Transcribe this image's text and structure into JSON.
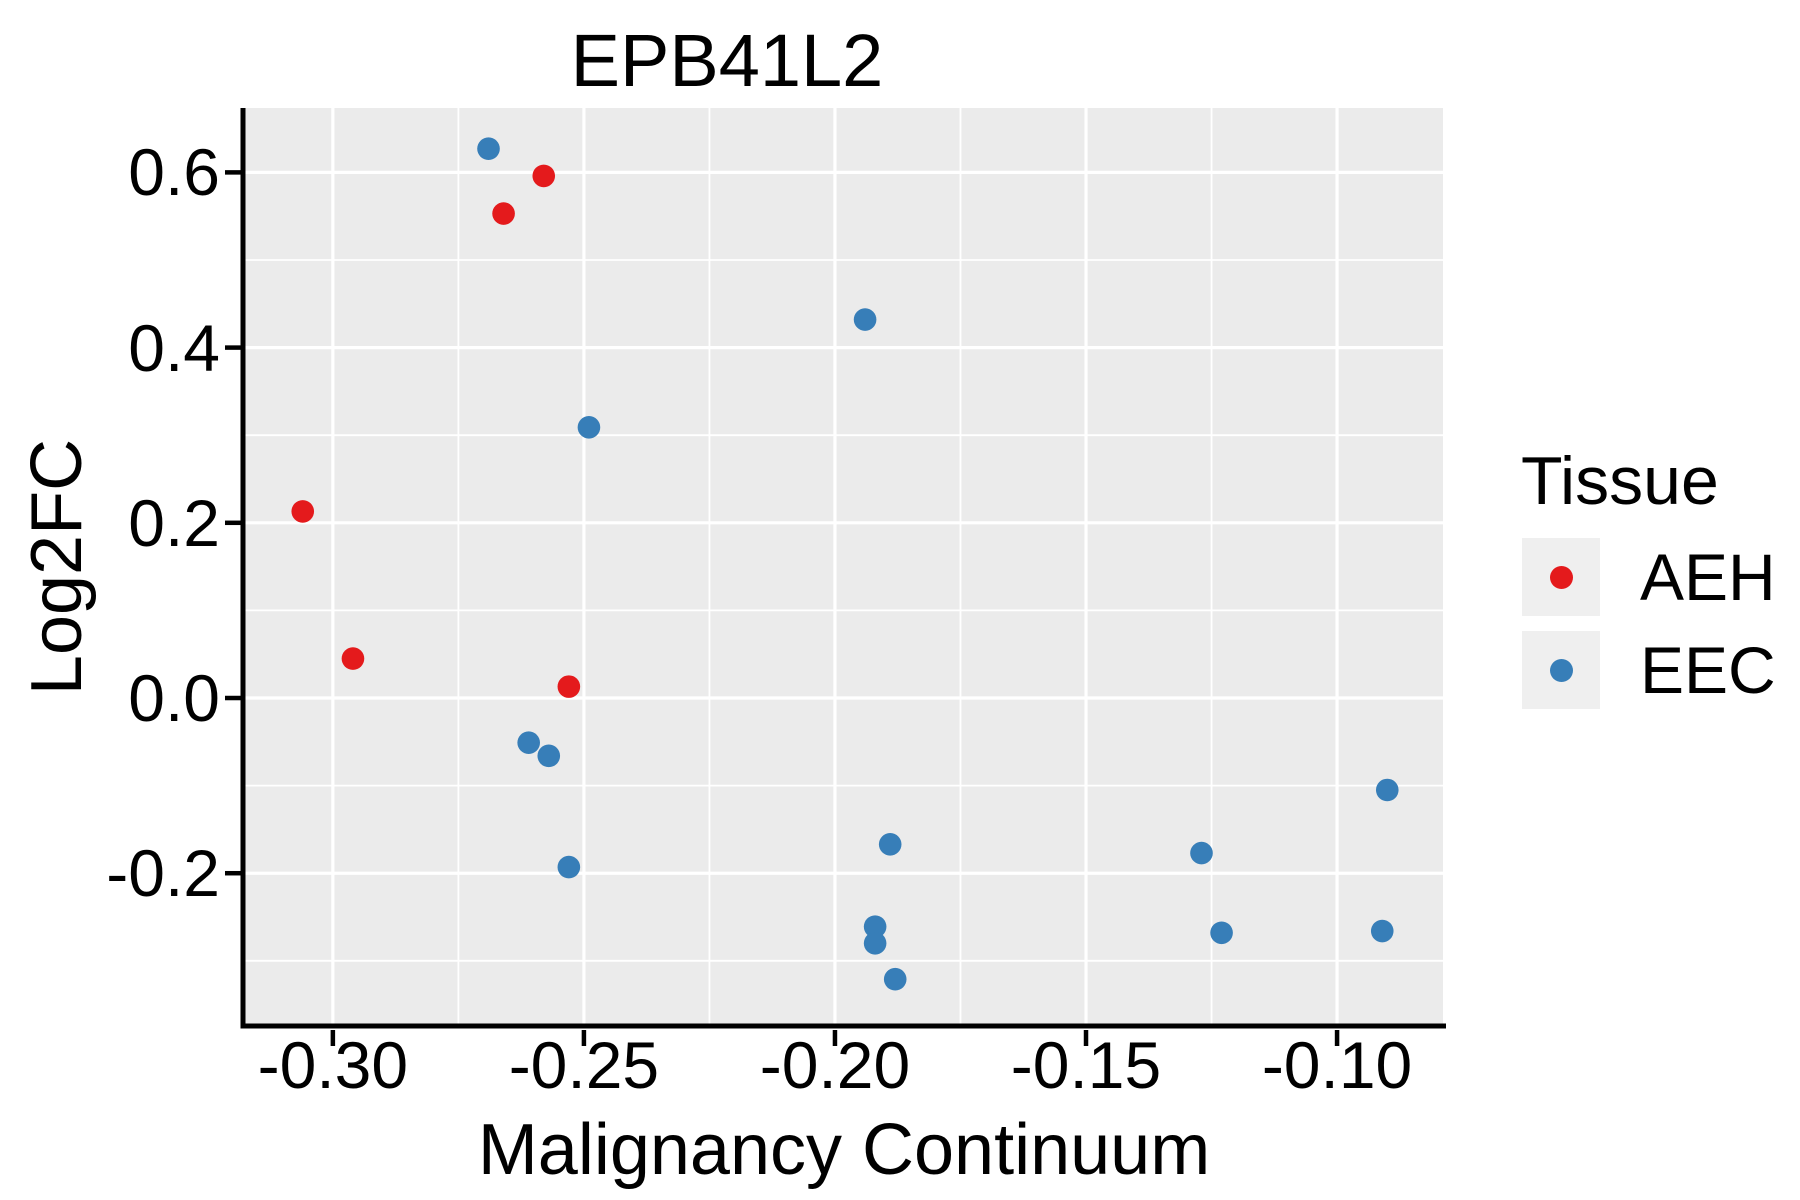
{
  "title": "EPB41L2",
  "chart_data": {
    "type": "scatter",
    "title": "EPB41L2",
    "xlabel": "Malignancy Continuum",
    "ylabel": "Log2FC",
    "xlim": [
      -0.3175,
      -0.0789
    ],
    "ylim": [
      -0.3744,
      0.6735
    ],
    "grid": true,
    "legend_position": "right",
    "x_ticks": {
      "values": [
        -0.3,
        -0.25,
        -0.2,
        -0.15,
        -0.1
      ],
      "labels": [
        "-0.30",
        "-0.25",
        "-0.20",
        "-0.15",
        "-0.10"
      ]
    },
    "y_ticks": {
      "values": [
        0.6,
        0.4,
        0.2,
        0.0,
        -0.2
      ],
      "labels": [
        "0.6",
        "0.4",
        "0.2",
        "0.0",
        "-0.2"
      ]
    },
    "x_minor": [
      -0.275,
      -0.225,
      -0.175,
      -0.125
    ],
    "y_minor": [
      0.5,
      0.3,
      0.1,
      -0.1,
      -0.3
    ],
    "series": [
      {
        "name": "AEH",
        "color": "#E41A1C",
        "points": [
          [
            -0.258,
            0.596
          ],
          [
            -0.266,
            0.553
          ],
          [
            -0.306,
            0.213
          ],
          [
            -0.296,
            0.045
          ],
          [
            -0.253,
            0.013
          ]
        ]
      },
      {
        "name": "EEC",
        "color": "#377EB8",
        "points": [
          [
            -0.269,
            0.627
          ],
          [
            -0.194,
            0.432
          ],
          [
            -0.249,
            0.309
          ],
          [
            -0.261,
            -0.051
          ],
          [
            -0.257,
            -0.066
          ],
          [
            -0.253,
            -0.193
          ],
          [
            -0.189,
            -0.167
          ],
          [
            -0.192,
            -0.261
          ],
          [
            -0.192,
            -0.28
          ],
          [
            -0.188,
            -0.321
          ],
          [
            -0.127,
            -0.177
          ],
          [
            -0.123,
            -0.268
          ],
          [
            -0.09,
            -0.105
          ],
          [
            -0.091,
            -0.266
          ]
        ]
      }
    ]
  },
  "legend": {
    "title": "Tissue",
    "items": [
      {
        "label": "AEH",
        "color": "#E41A1C"
      },
      {
        "label": "EEC",
        "color": "#377EB8"
      }
    ]
  },
  "styles": {
    "panel_bg": "#EBEBEB",
    "grid_color": "#FFFFFF",
    "axis_color": "#000000",
    "key_bg": "#EFEFEF",
    "point_radius": 11.3
  }
}
